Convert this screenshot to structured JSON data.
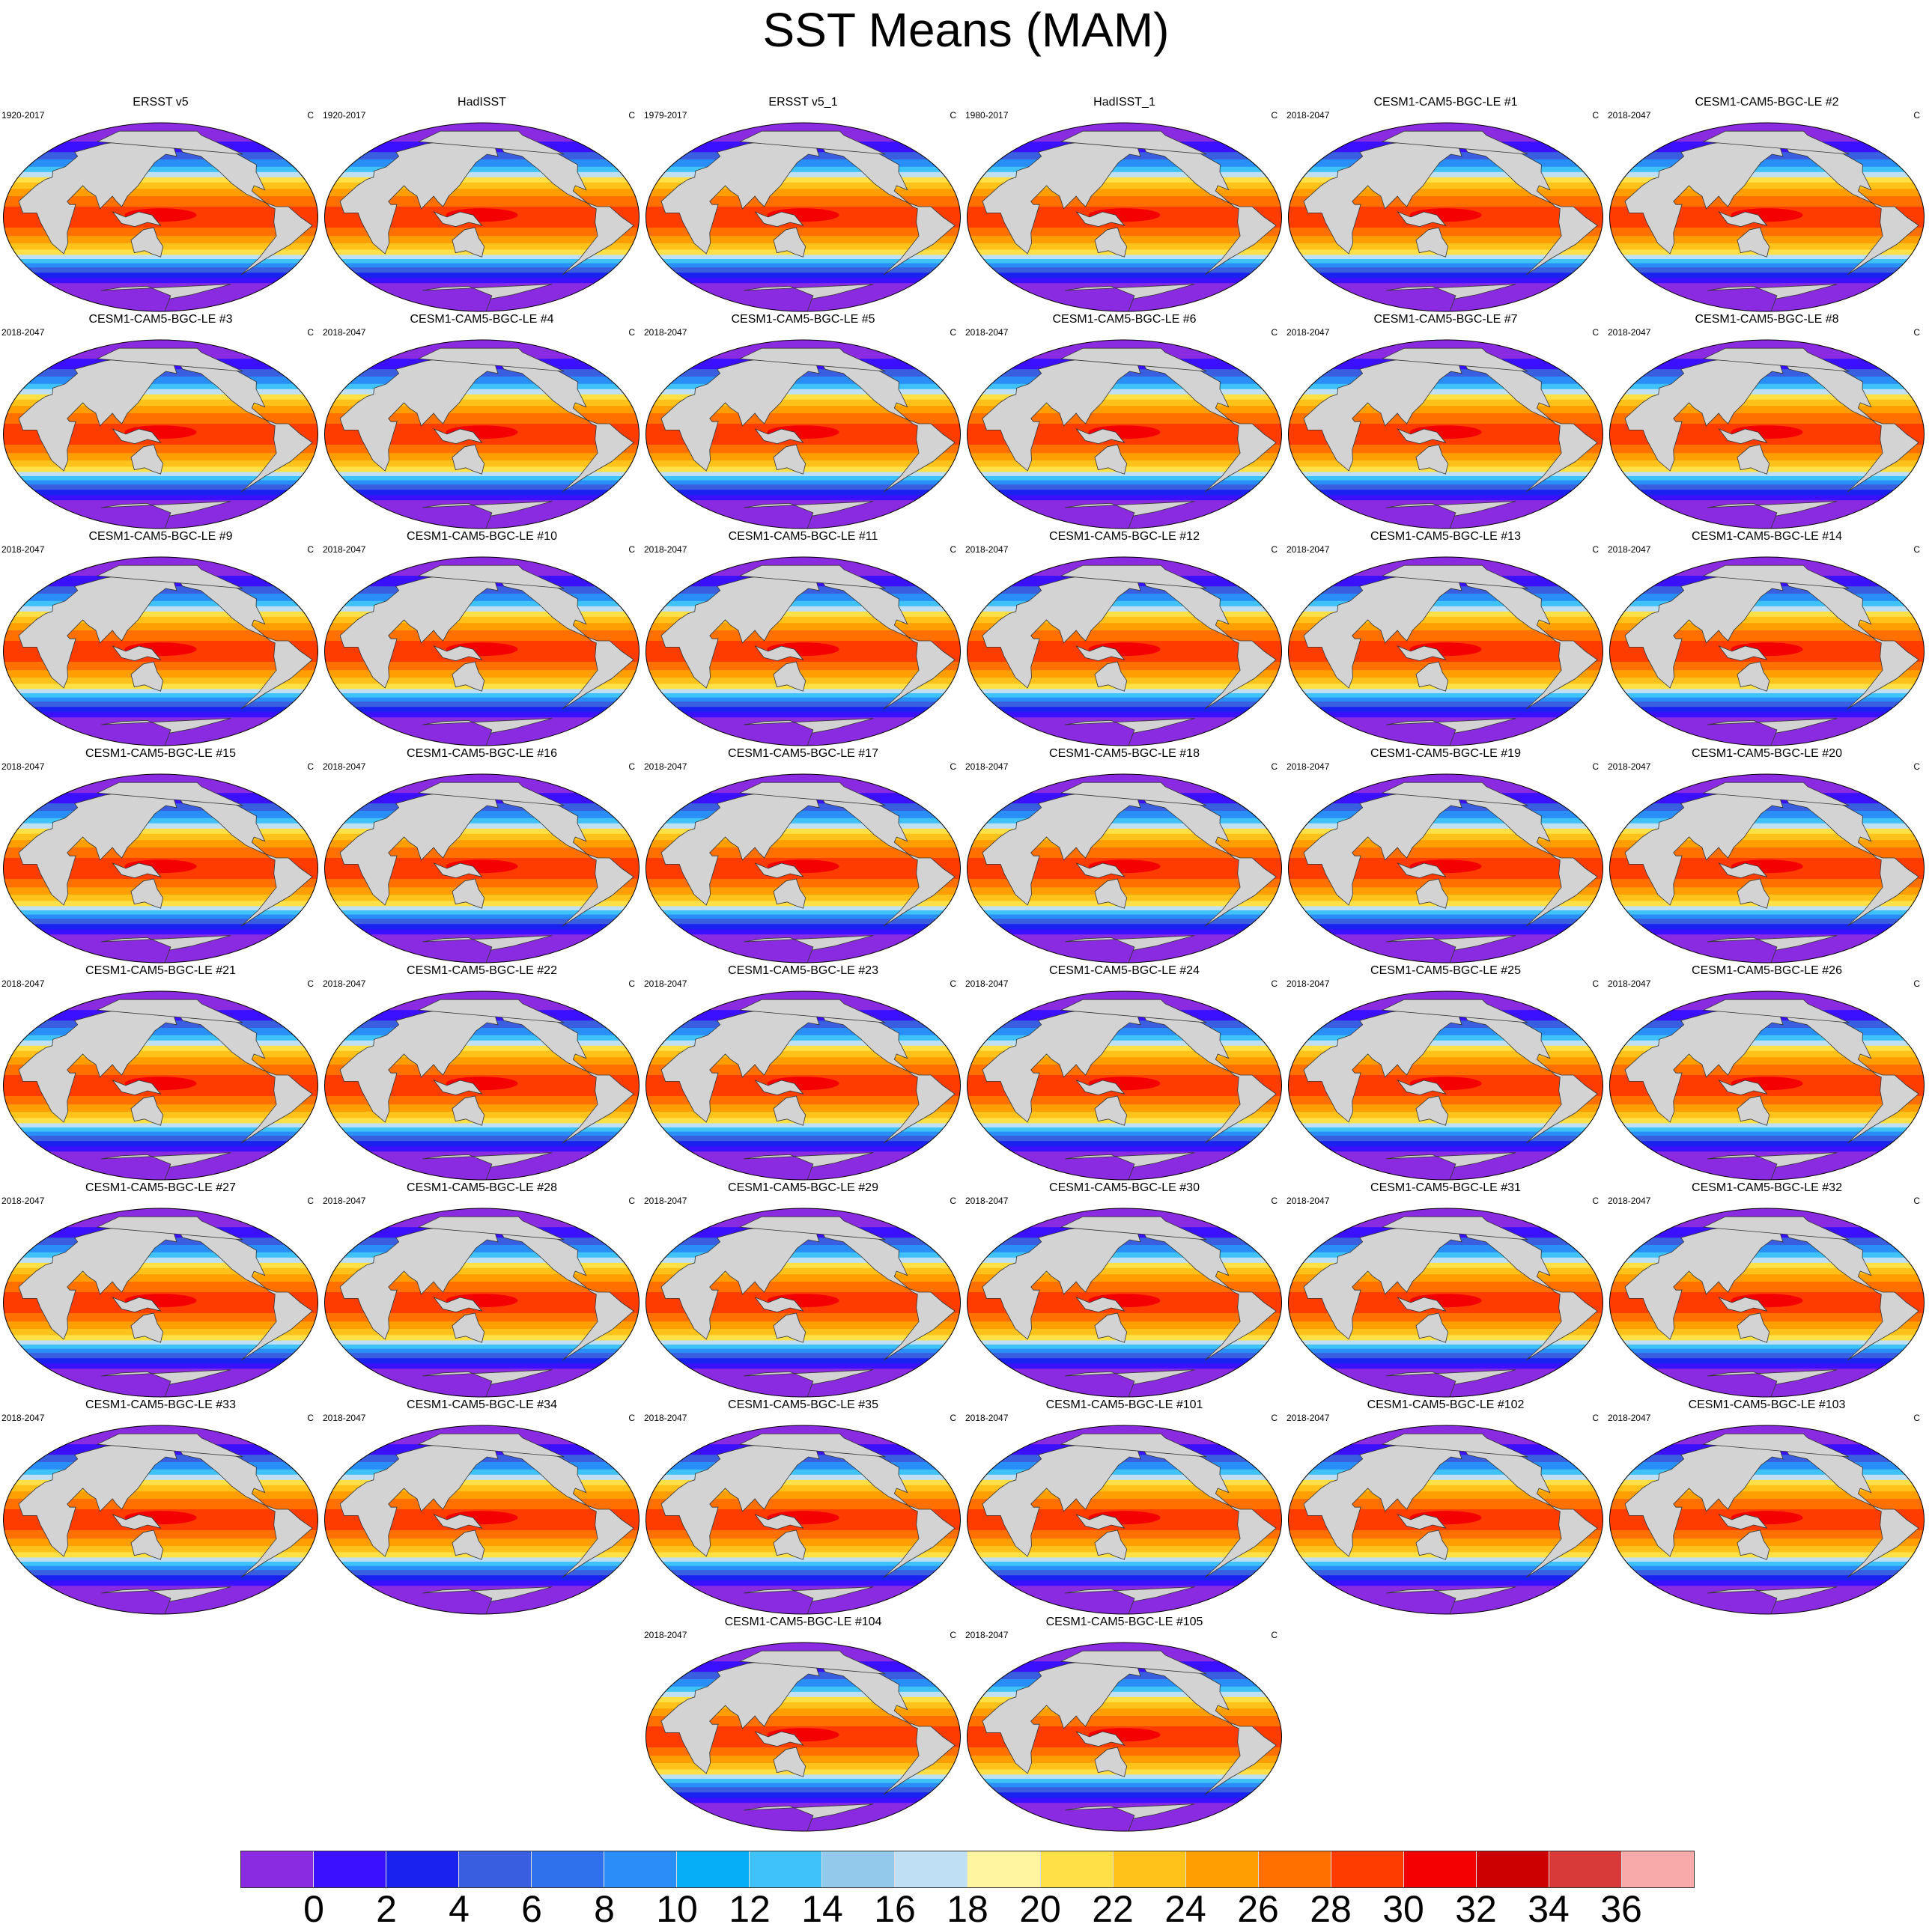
{
  "chart_data": {
    "type": "heatmap",
    "title": "SST Means (MAM)",
    "units": "C",
    "colorbar": {
      "levels": [
        0,
        2,
        4,
        6,
        8,
        10,
        12,
        14,
        16,
        18,
        20,
        22,
        24,
        26,
        28,
        30,
        32,
        34,
        36
      ],
      "colors": [
        "#8a2be2",
        "#3a10ff",
        "#1a22f0",
        "#3a5ee0",
        "#2f70ec",
        "#2a8ef8",
        "#06aef8",
        "#3ec2f8",
        "#93c9ea",
        "#bfe0f4",
        "#fff4a0",
        "#ffe046",
        "#ffc21a",
        "#ff9e00",
        "#ff7000",
        "#ff3c00",
        "#f40000",
        "#cc0000",
        "#d83a3a",
        "#f8aaaa"
      ]
    },
    "panels": [
      {
        "title": "ERSST v5",
        "period": "1920-2017",
        "units": "C"
      },
      {
        "title": "HadISST",
        "period": "1920-2017",
        "units": "C"
      },
      {
        "title": "ERSST v5_1",
        "period": "1979-2017",
        "units": "C"
      },
      {
        "title": "HadISST_1",
        "period": "1980-2017",
        "units": "C"
      },
      {
        "title": "CESM1-CAM5-BGC-LE #1",
        "period": "2018-2047",
        "units": "C"
      },
      {
        "title": "CESM1-CAM5-BGC-LE #2",
        "period": "2018-2047",
        "units": "C"
      },
      {
        "title": "CESM1-CAM5-BGC-LE #3",
        "period": "2018-2047",
        "units": "C"
      },
      {
        "title": "CESM1-CAM5-BGC-LE #4",
        "period": "2018-2047",
        "units": "C"
      },
      {
        "title": "CESM1-CAM5-BGC-LE #5",
        "period": "2018-2047",
        "units": "C"
      },
      {
        "title": "CESM1-CAM5-BGC-LE #6",
        "period": "2018-2047",
        "units": "C"
      },
      {
        "title": "CESM1-CAM5-BGC-LE #7",
        "period": "2018-2047",
        "units": "C"
      },
      {
        "title": "CESM1-CAM5-BGC-LE #8",
        "period": "2018-2047",
        "units": "C"
      },
      {
        "title": "CESM1-CAM5-BGC-LE #9",
        "period": "2018-2047",
        "units": "C"
      },
      {
        "title": "CESM1-CAM5-BGC-LE #10",
        "period": "2018-2047",
        "units": "C"
      },
      {
        "title": "CESM1-CAM5-BGC-LE #11",
        "period": "2018-2047",
        "units": "C"
      },
      {
        "title": "CESM1-CAM5-BGC-LE #12",
        "period": "2018-2047",
        "units": "C"
      },
      {
        "title": "CESM1-CAM5-BGC-LE #13",
        "period": "2018-2047",
        "units": "C"
      },
      {
        "title": "CESM1-CAM5-BGC-LE #14",
        "period": "2018-2047",
        "units": "C"
      },
      {
        "title": "CESM1-CAM5-BGC-LE #15",
        "period": "2018-2047",
        "units": "C"
      },
      {
        "title": "CESM1-CAM5-BGC-LE #16",
        "period": "2018-2047",
        "units": "C"
      },
      {
        "title": "CESM1-CAM5-BGC-LE #17",
        "period": "2018-2047",
        "units": "C"
      },
      {
        "title": "CESM1-CAM5-BGC-LE #18",
        "period": "2018-2047",
        "units": "C"
      },
      {
        "title": "CESM1-CAM5-BGC-LE #19",
        "period": "2018-2047",
        "units": "C"
      },
      {
        "title": "CESM1-CAM5-BGC-LE #20",
        "period": "2018-2047",
        "units": "C"
      },
      {
        "title": "CESM1-CAM5-BGC-LE #21",
        "period": "2018-2047",
        "units": "C"
      },
      {
        "title": "CESM1-CAM5-BGC-LE #22",
        "period": "2018-2047",
        "units": "C"
      },
      {
        "title": "CESM1-CAM5-BGC-LE #23",
        "period": "2018-2047",
        "units": "C"
      },
      {
        "title": "CESM1-CAM5-BGC-LE #24",
        "period": "2018-2047",
        "units": "C"
      },
      {
        "title": "CESM1-CAM5-BGC-LE #25",
        "period": "2018-2047",
        "units": "C"
      },
      {
        "title": "CESM1-CAM5-BGC-LE #26",
        "period": "2018-2047",
        "units": "C"
      },
      {
        "title": "CESM1-CAM5-BGC-LE #27",
        "period": "2018-2047",
        "units": "C"
      },
      {
        "title": "CESM1-CAM5-BGC-LE #28",
        "period": "2018-2047",
        "units": "C"
      },
      {
        "title": "CESM1-CAM5-BGC-LE #29",
        "period": "2018-2047",
        "units": "C"
      },
      {
        "title": "CESM1-CAM5-BGC-LE #30",
        "period": "2018-2047",
        "units": "C"
      },
      {
        "title": "CESM1-CAM5-BGC-LE #31",
        "period": "2018-2047",
        "units": "C"
      },
      {
        "title": "CESM1-CAM5-BGC-LE #32",
        "period": "2018-2047",
        "units": "C"
      },
      {
        "title": "CESM1-CAM5-BGC-LE #33",
        "period": "2018-2047",
        "units": "C"
      },
      {
        "title": "CESM1-CAM5-BGC-LE #34",
        "period": "2018-2047",
        "units": "C"
      },
      {
        "title": "CESM1-CAM5-BGC-LE #35",
        "period": "2018-2047",
        "units": "C"
      },
      {
        "title": "CESM1-CAM5-BGC-LE #101",
        "period": "2018-2047",
        "units": "C"
      },
      {
        "title": "CESM1-CAM5-BGC-LE #102",
        "period": "2018-2047",
        "units": "C"
      },
      {
        "title": "CESM1-CAM5-BGC-LE #103",
        "period": "2018-2047",
        "units": "C"
      },
      {
        "title": "CESM1-CAM5-BGC-LE #104",
        "period": "2018-2047",
        "units": "C"
      },
      {
        "title": "CESM1-CAM5-BGC-LE #105",
        "period": "2018-2047",
        "units": "C"
      }
    ]
  }
}
